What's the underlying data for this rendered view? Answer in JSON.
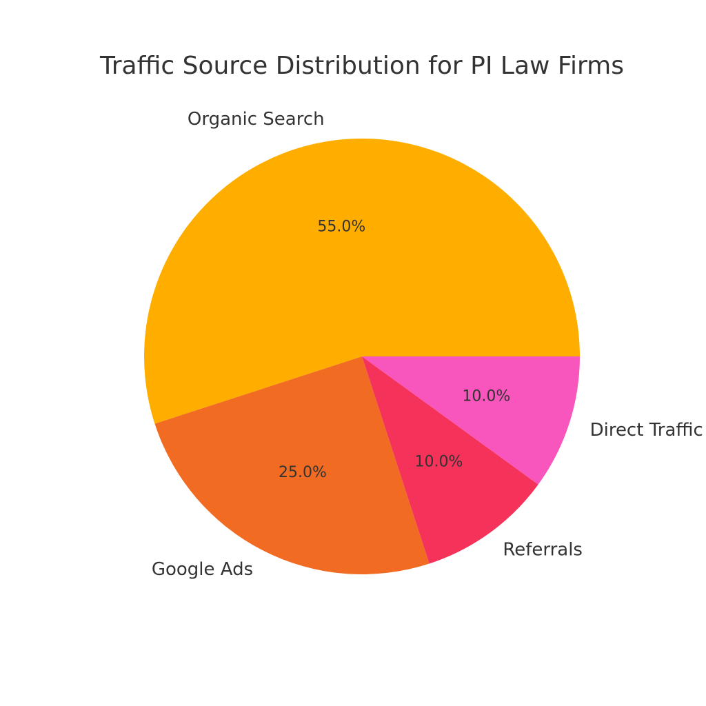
{
  "chart_data": {
    "type": "pie",
    "title": "Traffic Source Distribution for PI Law Firms",
    "categories": [
      "Organic Search",
      "Google Ads",
      "Referrals",
      "Direct Traffic"
    ],
    "values": [
      55,
      25,
      10,
      10
    ],
    "value_labels": [
      "55.0%",
      "25.0%",
      "10.0%",
      "10.0%"
    ],
    "colors": [
      "#ffae00",
      "#f26b22",
      "#f5335a",
      "#f956bd"
    ]
  }
}
